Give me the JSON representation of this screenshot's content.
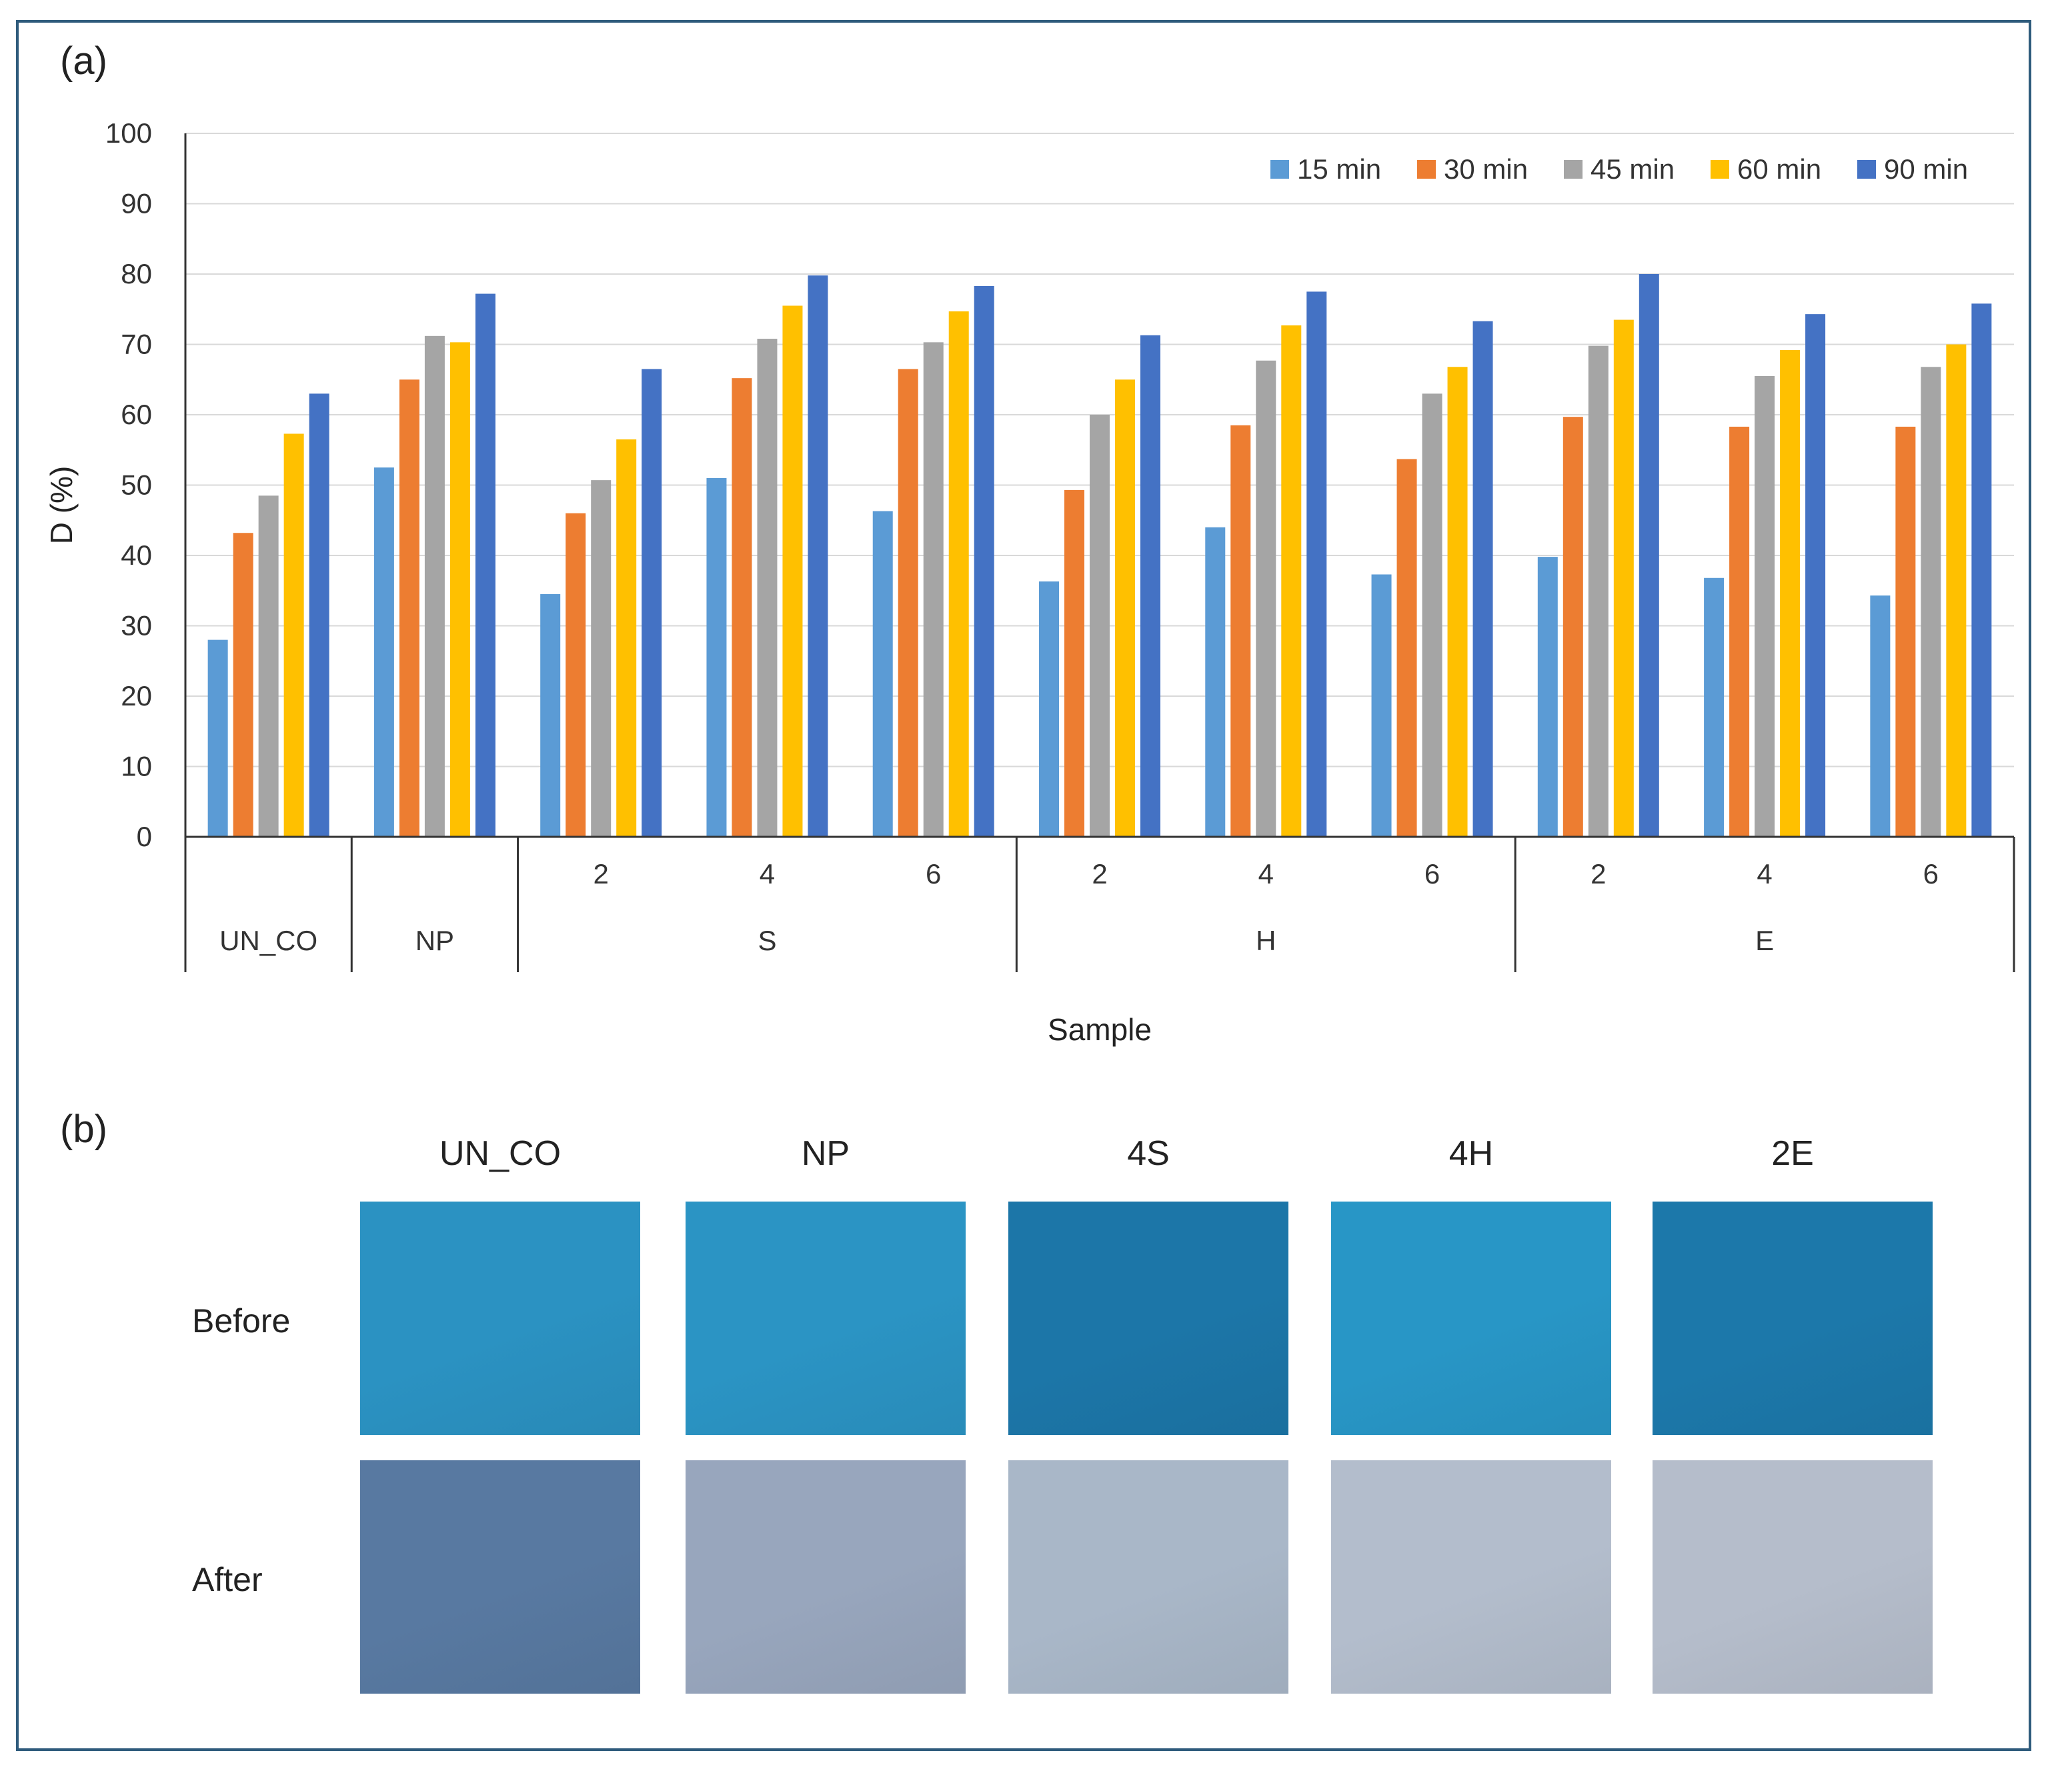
{
  "figure": {
    "panel_a_label": "(a)",
    "panel_b_label": "(b)"
  },
  "chart_data": {
    "type": "bar",
    "title": "",
    "xlabel": "Sample",
    "ylabel": "D (%)",
    "ylim": [
      0,
      100
    ],
    "yticks": [
      0,
      10,
      20,
      30,
      40,
      50,
      60,
      70,
      80,
      90,
      100
    ],
    "grid": true,
    "legend_position": "top-right",
    "categories": [
      "UN_CO",
      "NP",
      "S 2",
      "S 4",
      "S 6",
      "H 2",
      "H 4",
      "H 6",
      "E 2",
      "E 4",
      "E 6"
    ],
    "category_tick_labels": [
      "",
      "",
      "2",
      "4",
      "6",
      "2",
      "4",
      "6",
      "2",
      "4",
      "6"
    ],
    "groups": [
      {
        "label": "UN_CO",
        "span": 1
      },
      {
        "label": "NP",
        "span": 1
      },
      {
        "label": "S",
        "span": 3
      },
      {
        "label": "H",
        "span": 3
      },
      {
        "label": "E",
        "span": 3
      }
    ],
    "series": [
      {
        "name": "15 min",
        "color": "#5b9bd5",
        "values": [
          28,
          52.5,
          34.5,
          51,
          46.3,
          36.3,
          44,
          37.3,
          39.8,
          36.8,
          34.3
        ]
      },
      {
        "name": "30 min",
        "color": "#ed7d31",
        "values": [
          43.2,
          65,
          46,
          65.2,
          66.5,
          49.3,
          58.5,
          53.7,
          59.7,
          58.3,
          58.3
        ]
      },
      {
        "name": "45 min",
        "color": "#a5a5a5",
        "values": [
          48.5,
          71.2,
          50.7,
          70.8,
          70.3,
          60,
          67.7,
          63,
          69.8,
          65.5,
          66.8
        ]
      },
      {
        "name": "60 min",
        "color": "#ffc000",
        "values": [
          57.3,
          70.3,
          56.5,
          75.5,
          74.7,
          65,
          72.7,
          66.8,
          73.5,
          69.2,
          70
        ]
      },
      {
        "name": "90 min",
        "color": "#4472c4",
        "values": [
          63,
          77.2,
          66.5,
          79.8,
          78.3,
          71.3,
          77.5,
          73.3,
          80,
          74.3,
          75.8
        ]
      }
    ]
  },
  "photo_panel": {
    "columns": [
      "UN_CO",
      "NP",
      "4S",
      "4H",
      "2E"
    ],
    "rows": [
      "Before",
      "After"
    ],
    "colors": {
      "before": [
        "#2b92c2",
        "#2b94c4",
        "#1c76a8",
        "#2896c6",
        "#1c78aa"
      ],
      "after": [
        "#5879a1",
        "#98a6bd",
        "#a9b7c8",
        "#b3bdcc",
        "#b5bdcb"
      ]
    }
  }
}
